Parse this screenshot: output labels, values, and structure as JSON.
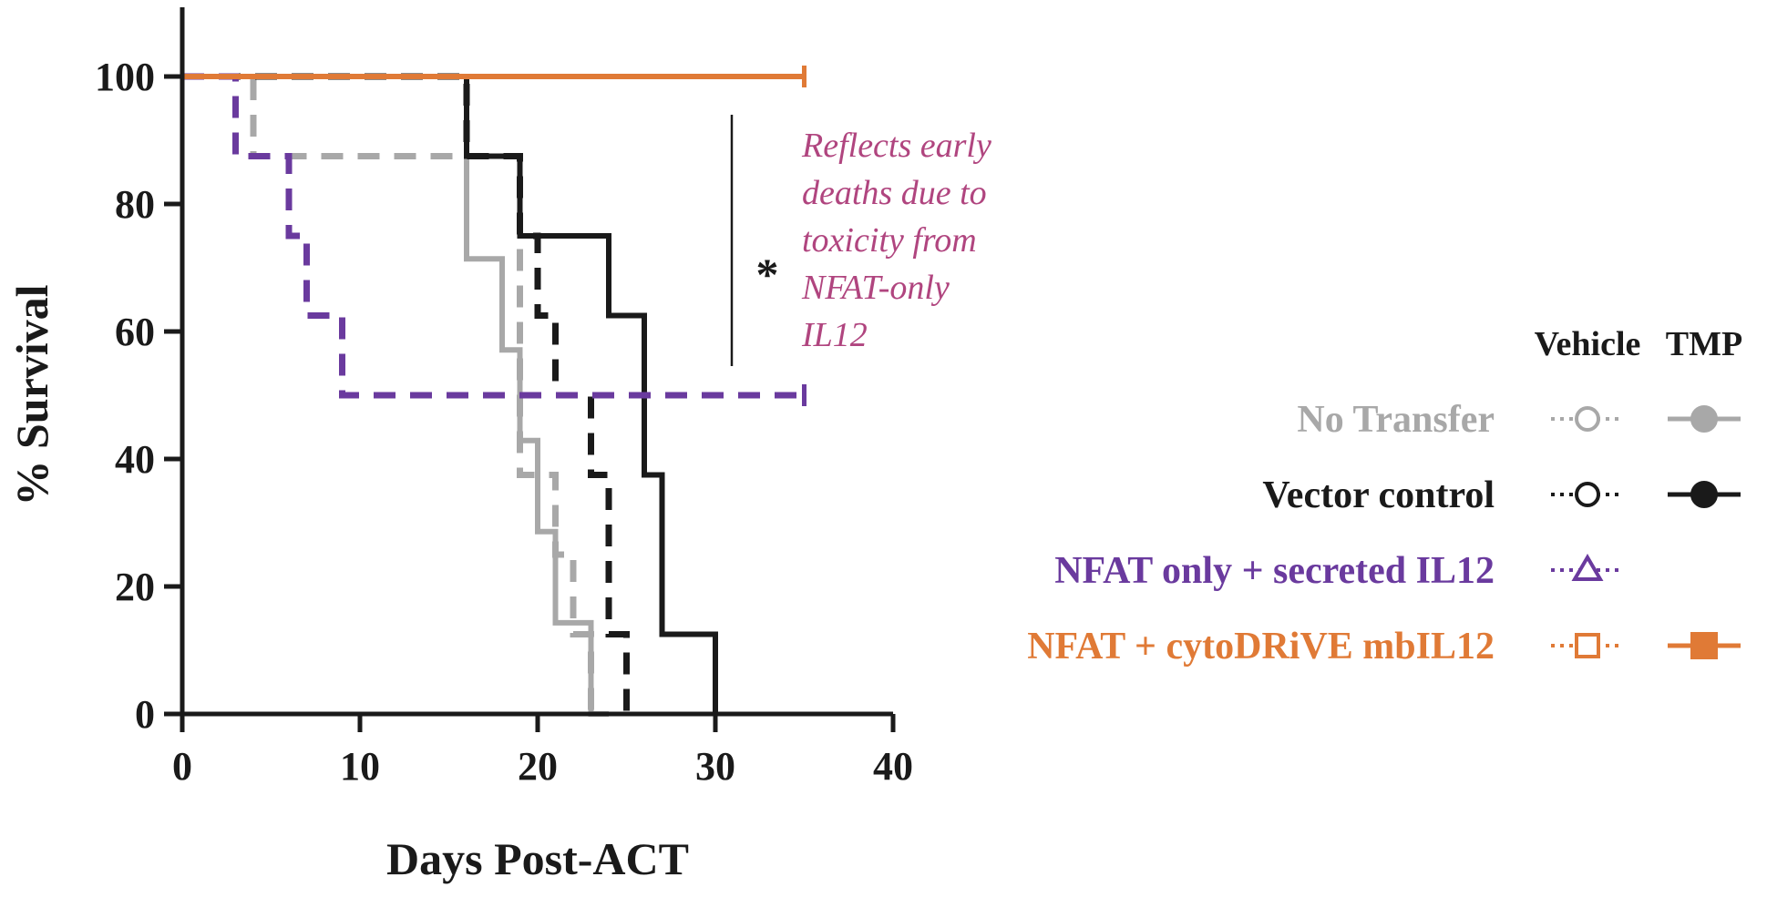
{
  "chart_data": {
    "type": "line",
    "subtype": "kaplan-meier",
    "title": "",
    "xlabel": "Days Post-ACT",
    "ylabel": "% Survival",
    "xlim": [
      0,
      40
    ],
    "ylim": [
      0,
      100
    ],
    "x_ticks": [
      0,
      10,
      20,
      30,
      40
    ],
    "y_ticks": [
      0,
      20,
      40,
      60,
      80,
      100
    ],
    "grid": false,
    "legend_position": "right",
    "legend_headers": [
      "Vehicle",
      "TMP"
    ],
    "legend_rows": [
      {
        "label": "No Transfer",
        "color": "#a8a8a8",
        "vehicle_marker": "open-circle",
        "tmp_marker": "filled-circle"
      },
      {
        "label": "Vector control",
        "color": "#1a1a1a",
        "vehicle_marker": "open-circle",
        "tmp_marker": "filled-circle"
      },
      {
        "label": "NFAT only + secreted IL12",
        "color": "#6a3a9e",
        "vehicle_marker": "open-triangle",
        "tmp_marker": ""
      },
      {
        "label": "NFAT + cytoDRiVE mbIL12",
        "color": "#e07a36",
        "vehicle_marker": "open-square",
        "tmp_marker": "filled-square"
      }
    ],
    "series": [
      {
        "group": "No Transfer",
        "condition": "Vehicle",
        "color": "#a8a8a8",
        "dashed": true,
        "x": [
          0,
          4,
          18,
          19,
          21,
          22,
          23
        ],
        "y": [
          100,
          87.5,
          87.5,
          37.5,
          25,
          12.5,
          0
        ]
      },
      {
        "group": "No Transfer",
        "condition": "TMP",
        "color": "#a8a8a8",
        "dashed": false,
        "x": [
          0,
          15,
          16,
          18,
          19,
          20,
          21,
          23,
          24
        ],
        "y": [
          100,
          100,
          71.4,
          57.1,
          42.9,
          28.6,
          14.3,
          0,
          0
        ]
      },
      {
        "group": "Vector control",
        "condition": "Vehicle",
        "color": "#1a1a1a",
        "dashed": true,
        "x": [
          0,
          16,
          19,
          20,
          21,
          23,
          24,
          25
        ],
        "y": [
          100,
          87.5,
          75,
          62.5,
          50,
          37.5,
          12.5,
          0
        ]
      },
      {
        "group": "Vector control",
        "condition": "TMP",
        "color": "#1a1a1a",
        "dashed": false,
        "x": [
          0,
          16,
          19,
          24,
          26,
          27,
          30
        ],
        "y": [
          100,
          87.5,
          75,
          62.5,
          37.5,
          12.5,
          0
        ]
      },
      {
        "group": "NFAT only + secreted IL12",
        "condition": "Vehicle",
        "color": "#6a3a9e",
        "dashed": true,
        "x": [
          0,
          3,
          6,
          7,
          9,
          35
        ],
        "y": [
          100,
          87.5,
          75,
          62.5,
          50,
          50
        ]
      },
      {
        "group": "NFAT + cytoDRiVE mbIL12",
        "condition": "TMP",
        "color": "#e07a36",
        "dashed": false,
        "x": [
          0,
          35
        ],
        "y": [
          100,
          100
        ]
      }
    ],
    "annotations": [
      {
        "text": "Reflects early deaths due to toxicity from NFAT-only IL12",
        "lines": [
          "Reflects early",
          "deaths due to",
          "toxicity from",
          "NFAT-only",
          "IL12"
        ],
        "color": "#b0457f"
      },
      {
        "text": "*",
        "color": "#1a1a1a"
      }
    ]
  }
}
